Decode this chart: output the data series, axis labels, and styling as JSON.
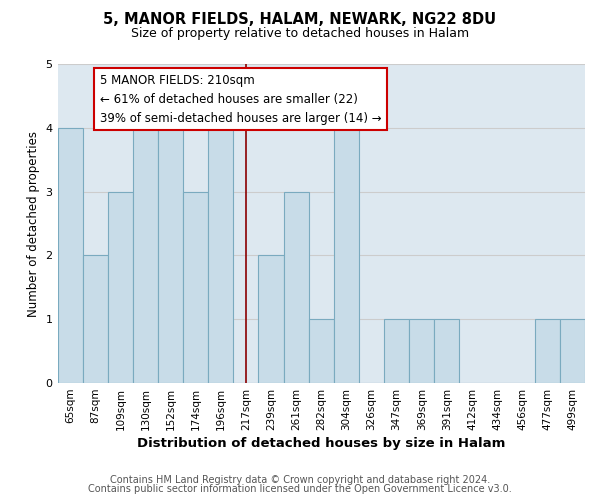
{
  "title": "5, MANOR FIELDS, HALAM, NEWARK, NG22 8DU",
  "subtitle": "Size of property relative to detached houses in Halam",
  "xlabel": "Distribution of detached houses by size in Halam",
  "ylabel": "Number of detached properties",
  "categories": [
    "65sqm",
    "87sqm",
    "109sqm",
    "130sqm",
    "152sqm",
    "174sqm",
    "196sqm",
    "217sqm",
    "239sqm",
    "261sqm",
    "282sqm",
    "304sqm",
    "326sqm",
    "347sqm",
    "369sqm",
    "391sqm",
    "412sqm",
    "434sqm",
    "456sqm",
    "477sqm",
    "499sqm"
  ],
  "values": [
    4,
    2,
    3,
    4,
    4,
    3,
    4,
    0,
    2,
    3,
    1,
    4,
    0,
    1,
    1,
    1,
    0,
    0,
    0,
    1,
    1
  ],
  "bar_color": "#c8dce8",
  "bar_edge_color": "#7aaabf",
  "reference_line_x": 7,
  "reference_line_color": "#8b0000",
  "annotation_text": "5 MANOR FIELDS: 210sqm\n← 61% of detached houses are smaller (22)\n39% of semi-detached houses are larger (14) →",
  "annotation_box_color": "#ffffff",
  "annotation_box_edge_color": "#cc0000",
  "ylim": [
    0,
    5
  ],
  "yticks": [
    0,
    1,
    2,
    3,
    4,
    5
  ],
  "footer1": "Contains HM Land Registry data © Crown copyright and database right 2024.",
  "footer2": "Contains public sector information licensed under the Open Government Licence v3.0.",
  "bg_color": "#ffffff",
  "grid_color": "#cccccc",
  "plot_bg_color": "#dde8f0"
}
